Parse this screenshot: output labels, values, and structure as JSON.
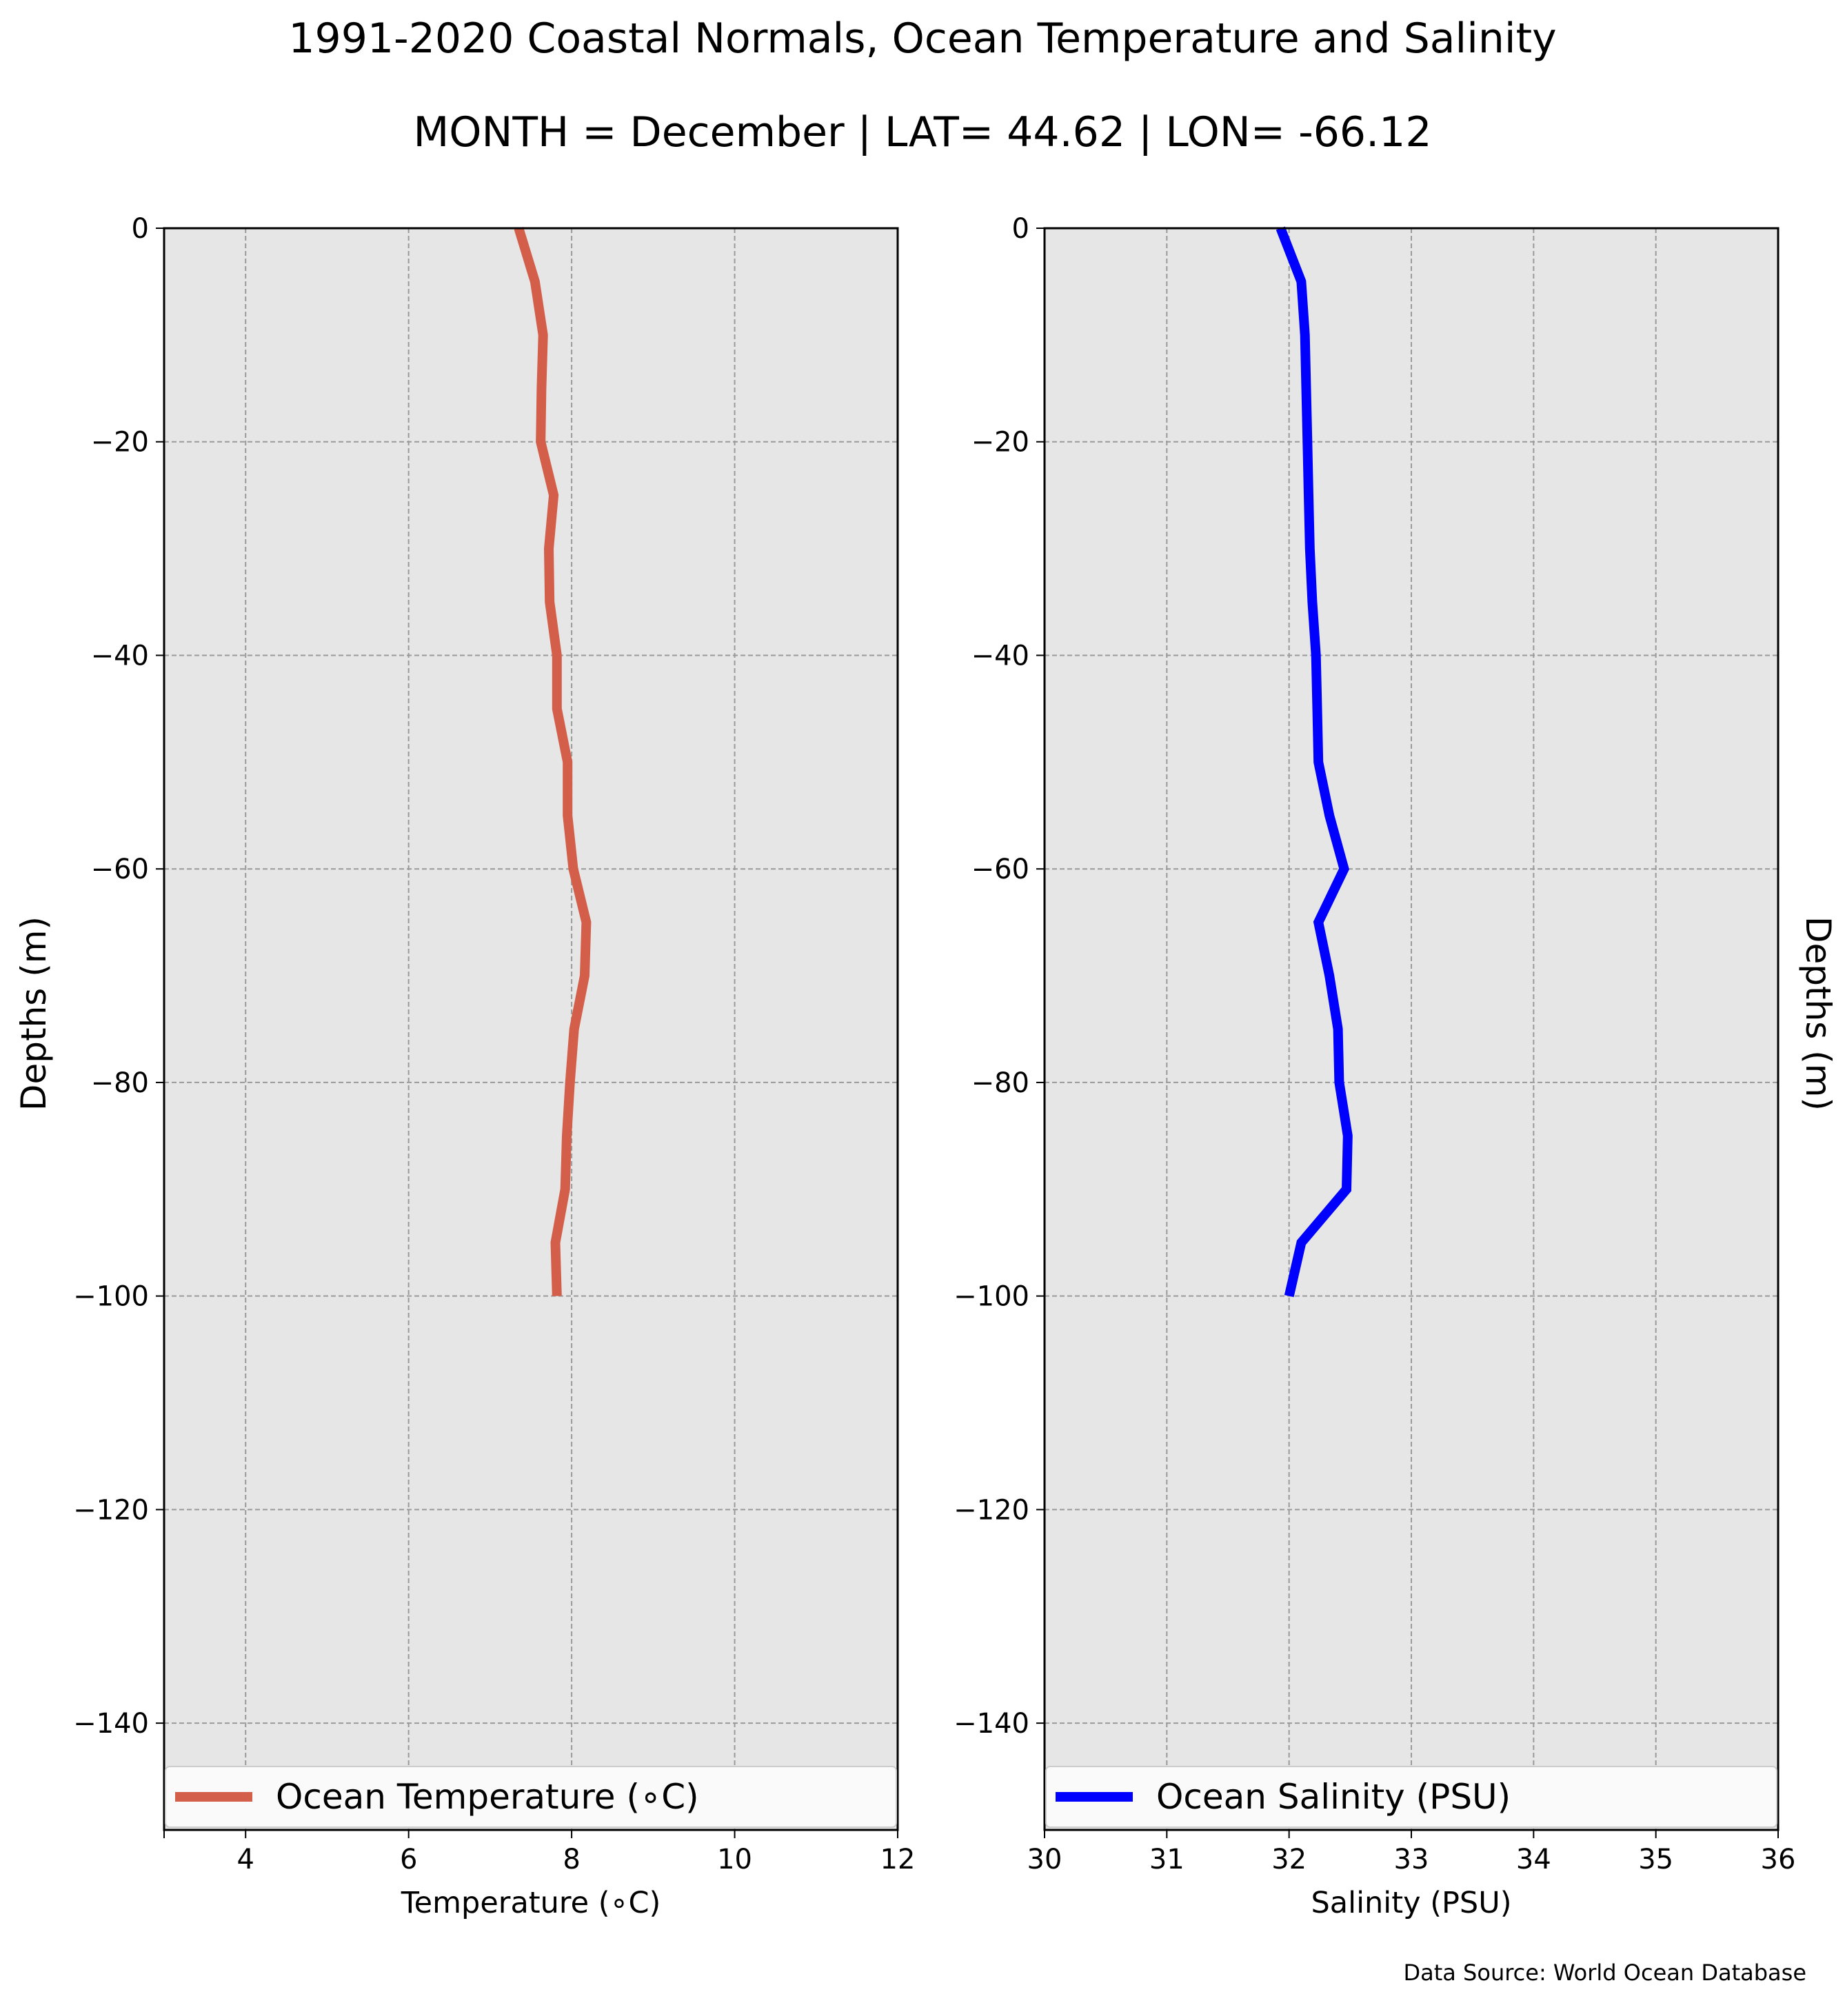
{
  "chart_data": {
    "type": "line",
    "title": "1991-2020 Coastal Normals, Ocean Temperature and Salinity",
    "subtitle": "MONTH = December | LAT= 44.62 | LON= -66.12",
    "source_note": "Data Source: World Ocean Database",
    "ylabel": "Depths (m)",
    "ylabel_right": "Depths (m)",
    "ylim": [
      -150,
      0
    ],
    "yticks": [
      0,
      -20,
      -40,
      -60,
      -80,
      -100,
      -120,
      -140
    ],
    "ytick_labels": [
      "0",
      "−20",
      "−40",
      "−60",
      "−80",
      "−100",
      "−120",
      "−140"
    ],
    "grid": true,
    "background_color": "#e6e6e6",
    "panels": [
      {
        "xlabel": "Temperature (∘C)",
        "xlim": [
          3,
          12
        ],
        "xticks": [
          4,
          6,
          8,
          10,
          12
        ],
        "xtick_labels": [
          "4",
          "6",
          "8",
          "10",
          "12"
        ],
        "legend_position": "bottom",
        "series": [
          {
            "name": "Ocean Temperature (∘C)",
            "color": "#d35e4a",
            "depth": [
              0,
              -5,
              -10,
              -15,
              -20,
              -25,
              -30,
              -35,
              -40,
              -45,
              -50,
              -55,
              -60,
              -65,
              -70,
              -75,
              -80,
              -85,
              -90,
              -95,
              -100
            ],
            "values": [
              7.35,
              7.55,
              7.65,
              7.63,
              7.62,
              7.78,
              7.72,
              7.73,
              7.82,
              7.82,
              7.95,
              7.95,
              8.02,
              8.18,
              8.16,
              8.03,
              7.98,
              7.94,
              7.92,
              7.8,
              7.82
            ]
          }
        ]
      },
      {
        "xlabel": "Salinity (PSU)",
        "xlim": [
          30,
          36
        ],
        "xticks": [
          30,
          31,
          32,
          33,
          34,
          35,
          36
        ],
        "xtick_labels": [
          "30",
          "31",
          "32",
          "33",
          "34",
          "35",
          "36"
        ],
        "legend_position": "bottom",
        "series": [
          {
            "name": "Ocean Salinity (PSU)",
            "color": "#0000ff",
            "depth": [
              0,
              -5,
              -10,
              -15,
              -20,
              -25,
              -30,
              -35,
              -40,
              -45,
              -50,
              -55,
              -60,
              -65,
              -70,
              -75,
              -80,
              -85,
              -90,
              -95,
              -100
            ],
            "values": [
              31.93,
              32.1,
              32.13,
              32.14,
              32.15,
              32.16,
              32.17,
              32.19,
              32.22,
              32.23,
              32.24,
              32.33,
              32.45,
              32.24,
              32.33,
              32.4,
              32.41,
              32.48,
              32.47,
              32.1,
              32.0
            ]
          }
        ]
      }
    ]
  }
}
